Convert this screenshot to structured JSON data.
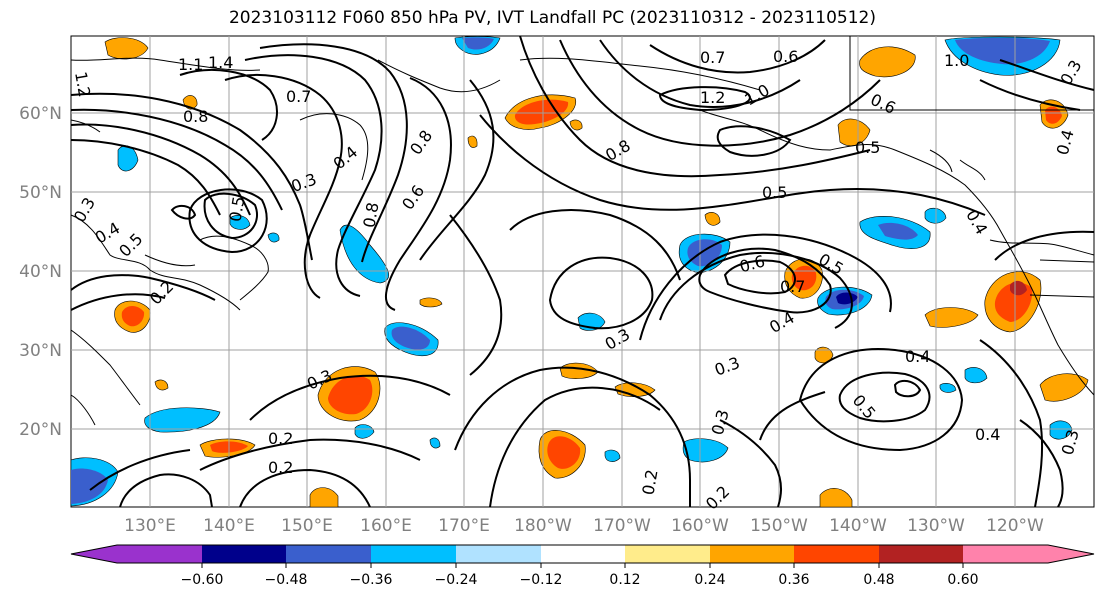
{
  "title": "2023103112 F060 850 hPa PV, IVT Landfall PC (2023110312 - 2023110512)",
  "lat_ticks": [
    "20°N",
    "30°N",
    "40°N",
    "50°N",
    "60°N"
  ],
  "lon_ticks": [
    "130°E",
    "140°E",
    "150°E",
    "160°E",
    "170°E",
    "180°W",
    "170°W",
    "160°W",
    "150°W",
    "140°W",
    "130°W",
    "120°W"
  ],
  "contour_labels": [
    "1.2",
    "1.4",
    "1.1",
    "0.7",
    "0.6",
    "1.0",
    "0.8",
    "0.7",
    "0.3",
    "0.4",
    "0.8",
    "1.0",
    "1.2",
    "0.6",
    "0.8",
    "0.5",
    "0.4",
    "0.3",
    "0.5",
    "0.3",
    "0.5",
    "0.4",
    "0.8",
    "0.6",
    "0.5",
    "0.4",
    "0.6",
    "0.7",
    "0.5",
    "0.4",
    "0.3",
    "0.3",
    "0.3",
    "0.4",
    "0.5",
    "0.4",
    "0.2",
    "0.2",
    "0.2",
    "0.2",
    "0.3",
    "0.3",
    "0.2"
  ],
  "colorbar": {
    "ticks": [
      "−0.60",
      "−0.48",
      "−0.36",
      "−0.24",
      "−0.12",
      "0.12",
      "0.24",
      "0.36",
      "0.48",
      "0.60"
    ],
    "colors": [
      "#9a32cd",
      "#00008b",
      "#3a5fcd",
      "#00bfff",
      "#b0e2ff",
      "#ffffff",
      "#ffec8b",
      "#ffa500",
      "#ff4500",
      "#b22222",
      "#ff82ab"
    ]
  }
}
